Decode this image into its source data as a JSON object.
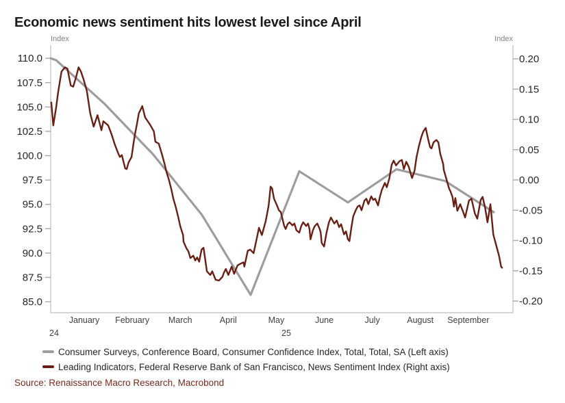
{
  "title": "Economic news sentiment hits lowest level since April",
  "left_axis_unit_label": "Index",
  "right_axis_unit_label": "Index",
  "source": "Source: Renaissance Macro Research, Macrobond",
  "legend": [
    {
      "label": "Consumer Surveys, Conference Board, Consumer Confidence Index, Total, Total, SA (Left axis)",
      "color": "#9d9d9d"
    },
    {
      "label": "Leading Indicators, Federal Reserve Bank of San Francisco, News Sentiment Index (Right axis)",
      "color": "#6b1d12"
    }
  ],
  "chart_data": {
    "type": "line",
    "title": "Economic news sentiment hits lowest level since April",
    "grid": false,
    "x_axis": {
      "month_labels": [
        "January",
        "February",
        "March",
        "April",
        "May",
        "June",
        "July",
        "August",
        "September"
      ],
      "year_labels": [
        "24",
        "25"
      ]
    },
    "left_axis": {
      "label": "Index",
      "tick_labels": [
        "110.0",
        "107.5",
        "105.0",
        "102.5",
        "100.0",
        "97.5",
        "95.0",
        "92.5",
        "90.0",
        "87.5",
        "85.0"
      ],
      "tick_values": [
        110.0,
        107.5,
        105.0,
        102.5,
        100.0,
        97.5,
        95.0,
        92.5,
        90.0,
        87.5,
        85.0
      ],
      "range": [
        83.8,
        111.3
      ]
    },
    "right_axis": {
      "label": "Index",
      "tick_labels": [
        "0.20",
        "0.15",
        "0.10",
        "0.05",
        "0.00",
        "-0.05",
        "-0.10",
        "-0.15",
        "-0.20"
      ],
      "tick_values": [
        0.2,
        0.15,
        0.1,
        0.05,
        0.0,
        -0.05,
        -0.1,
        -0.15,
        -0.2
      ],
      "range": [
        -0.219,
        0.223
      ]
    },
    "series": [
      {
        "name": "Consumer Surveys, Conference Board, Consumer Confidence Index, Total, Total, SA",
        "axis": "left",
        "color": "#9d9d9d",
        "categories": [
          "Dec 2024",
          "Jan 2025",
          "Feb 2025",
          "Mar 2025",
          "Apr 2025",
          "May 2025",
          "Jun 2025",
          "Jul 2025",
          "Aug 2025",
          "Sep 2025"
        ],
        "values": [
          109.8,
          105.3,
          100.1,
          93.9,
          85.7,
          98.4,
          95.2,
          98.6,
          97.4,
          94.2
        ],
        "points": [
          [
            -0.11,
            110.0
          ],
          [
            0,
            109.8
          ],
          [
            1,
            105.3
          ],
          [
            2,
            100.1
          ],
          [
            3,
            93.9
          ],
          [
            4,
            85.7
          ],
          [
            5,
            98.4
          ],
          [
            6,
            95.2
          ],
          [
            7,
            98.6
          ],
          [
            8,
            97.4
          ],
          [
            9,
            94.2
          ]
        ]
      },
      {
        "name": "Leading Indicators, Federal Reserve Bank of San Francisco, News Sentiment Index",
        "axis": "right",
        "color": "#6b1d12",
        "points": [
          [
            -0.1,
            0.128
          ],
          [
            -0.06,
            0.09
          ],
          [
            0.0,
            0.12
          ],
          [
            0.04,
            0.145
          ],
          [
            0.11,
            0.179
          ],
          [
            0.18,
            0.186
          ],
          [
            0.23,
            0.184
          ],
          [
            0.3,
            0.156
          ],
          [
            0.35,
            0.154
          ],
          [
            0.41,
            0.17
          ],
          [
            0.46,
            0.186
          ],
          [
            0.51,
            0.179
          ],
          [
            0.56,
            0.167
          ],
          [
            0.63,
            0.147
          ],
          [
            0.7,
            0.11
          ],
          [
            0.77,
            0.088
          ],
          [
            0.85,
            0.107
          ],
          [
            0.93,
            0.082
          ],
          [
            0.97,
            0.097
          ],
          [
            1.07,
            0.09
          ],
          [
            1.14,
            0.075
          ],
          [
            1.2,
            0.06
          ],
          [
            1.27,
            0.045
          ],
          [
            1.31,
            0.038
          ],
          [
            1.35,
            0.041
          ],
          [
            1.42,
            0.019
          ],
          [
            1.45,
            0.018
          ],
          [
            1.49,
            0.029
          ],
          [
            1.55,
            0.038
          ],
          [
            1.59,
            0.06
          ],
          [
            1.62,
            0.075
          ],
          [
            1.66,
            0.092
          ],
          [
            1.7,
            0.11
          ],
          [
            1.76,
            0.12
          ],
          [
            1.77,
            0.122
          ],
          [
            1.83,
            0.103
          ],
          [
            1.9,
            0.095
          ],
          [
            1.94,
            0.09
          ],
          [
            2.01,
            0.08
          ],
          [
            2.04,
            0.063
          ],
          [
            2.11,
            0.06
          ],
          [
            2.18,
            0.041
          ],
          [
            2.23,
            0.026
          ],
          [
            2.27,
            0.013
          ],
          [
            2.32,
            0.0
          ],
          [
            2.37,
            -0.016
          ],
          [
            2.41,
            -0.031
          ],
          [
            2.46,
            -0.045
          ],
          [
            2.51,
            -0.061
          ],
          [
            2.55,
            -0.076
          ],
          [
            2.61,
            -0.091
          ],
          [
            2.62,
            -0.102
          ],
          [
            2.68,
            -0.113
          ],
          [
            2.72,
            -0.118
          ],
          [
            2.76,
            -0.129
          ],
          [
            2.82,
            -0.125
          ],
          [
            2.86,
            -0.133
          ],
          [
            2.9,
            -0.128
          ],
          [
            2.94,
            -0.135
          ],
          [
            2.99,
            -0.115
          ],
          [
            3.03,
            -0.112
          ],
          [
            3.1,
            -0.151
          ],
          [
            3.17,
            -0.157
          ],
          [
            3.21,
            -0.151
          ],
          [
            3.28,
            -0.165
          ],
          [
            3.35,
            -0.166
          ],
          [
            3.42,
            -0.16
          ],
          [
            3.45,
            -0.153
          ],
          [
            3.49,
            -0.147
          ],
          [
            3.54,
            -0.157
          ],
          [
            3.61,
            -0.143
          ],
          [
            3.66,
            -0.155
          ],
          [
            3.73,
            -0.141
          ],
          [
            3.8,
            -0.138
          ],
          [
            3.85,
            -0.136
          ],
          [
            3.87,
            -0.143
          ],
          [
            3.94,
            -0.117
          ],
          [
            3.99,
            -0.115
          ],
          [
            4.06,
            -0.121
          ],
          [
            4.15,
            -0.087
          ],
          [
            4.17,
            -0.079
          ],
          [
            4.23,
            -0.091
          ],
          [
            4.31,
            -0.068
          ],
          [
            4.37,
            -0.042
          ],
          [
            4.41,
            -0.011
          ],
          [
            4.44,
            -0.014
          ],
          [
            4.48,
            -0.031
          ],
          [
            4.54,
            -0.042
          ],
          [
            4.58,
            -0.05
          ],
          [
            4.62,
            -0.053
          ],
          [
            4.69,
            -0.076
          ],
          [
            4.72,
            -0.081
          ],
          [
            4.76,
            -0.073
          ],
          [
            4.8,
            -0.07
          ],
          [
            4.86,
            -0.075
          ],
          [
            4.9,
            -0.072
          ],
          [
            4.94,
            -0.083
          ],
          [
            5.0,
            -0.087
          ],
          [
            5.04,
            -0.076
          ],
          [
            5.08,
            -0.07
          ],
          [
            5.14,
            -0.076
          ],
          [
            5.18,
            -0.072
          ],
          [
            5.21,
            -0.081
          ],
          [
            5.23,
            -0.098
          ],
          [
            5.28,
            -0.083
          ],
          [
            5.32,
            -0.076
          ],
          [
            5.37,
            -0.072
          ],
          [
            5.42,
            -0.081
          ],
          [
            5.44,
            -0.087
          ],
          [
            5.46,
            -0.104
          ],
          [
            5.51,
            -0.11
          ],
          [
            5.56,
            -0.087
          ],
          [
            5.61,
            -0.07
          ],
          [
            5.65,
            -0.062
          ],
          [
            5.72,
            -0.072
          ],
          [
            5.77,
            -0.067
          ],
          [
            5.82,
            -0.078
          ],
          [
            5.86,
            -0.073
          ],
          [
            5.92,
            -0.09
          ],
          [
            5.96,
            -0.085
          ],
          [
            6.0,
            -0.098
          ],
          [
            6.03,
            -0.101
          ],
          [
            6.07,
            -0.079
          ],
          [
            6.11,
            -0.06
          ],
          [
            6.16,
            -0.05
          ],
          [
            6.2,
            -0.044
          ],
          [
            6.24,
            -0.042
          ],
          [
            6.28,
            -0.05
          ],
          [
            6.34,
            -0.034
          ],
          [
            6.38,
            -0.031
          ],
          [
            6.42,
            -0.04
          ],
          [
            6.48,
            -0.027
          ],
          [
            6.52,
            -0.033
          ],
          [
            6.56,
            -0.031
          ],
          [
            6.62,
            -0.042
          ],
          [
            6.66,
            -0.027
          ],
          [
            6.7,
            -0.016
          ],
          [
            6.76,
            -0.005
          ],
          [
            6.8,
            -0.012
          ],
          [
            6.85,
            0.002
          ],
          [
            6.9,
            0.025
          ],
          [
            6.94,
            0.032
          ],
          [
            6.99,
            0.024
          ],
          [
            7.06,
            0.031
          ],
          [
            7.11,
            0.033
          ],
          [
            7.15,
            0.018
          ],
          [
            7.2,
            0.03
          ],
          [
            7.25,
            0.022
          ],
          [
            7.3,
            0.008
          ],
          [
            7.32,
            0.003
          ],
          [
            7.37,
            0.015
          ],
          [
            7.41,
            0.037
          ],
          [
            7.46,
            0.056
          ],
          [
            7.51,
            0.071
          ],
          [
            7.55,
            0.08
          ],
          [
            7.6,
            0.086
          ],
          [
            7.65,
            0.067
          ],
          [
            7.69,
            0.054
          ],
          [
            7.72,
            0.052
          ],
          [
            7.76,
            0.062
          ],
          [
            7.82,
            0.066
          ],
          [
            7.86,
            0.062
          ],
          [
            7.9,
            0.043
          ],
          [
            7.96,
            0.026
          ],
          [
            7.97,
            0.017
          ],
          [
            8.03,
            0.0
          ],
          [
            8.08,
            -0.014
          ],
          [
            8.11,
            -0.019
          ],
          [
            8.15,
            -0.028
          ],
          [
            8.18,
            -0.044
          ],
          [
            8.21,
            -0.03
          ],
          [
            8.25,
            -0.051
          ],
          [
            8.31,
            -0.04
          ],
          [
            8.38,
            -0.055
          ],
          [
            8.41,
            -0.062
          ],
          [
            8.49,
            -0.034
          ],
          [
            8.54,
            -0.031
          ],
          [
            8.61,
            -0.055
          ],
          [
            8.66,
            -0.064
          ],
          [
            8.73,
            -0.033
          ],
          [
            8.77,
            -0.028
          ],
          [
            8.82,
            -0.045
          ],
          [
            8.87,
            -0.07
          ],
          [
            8.93,
            -0.04
          ],
          [
            8.99,
            -0.09
          ],
          [
            9.01,
            -0.096
          ],
          [
            9.08,
            -0.117
          ],
          [
            9.11,
            -0.126
          ],
          [
            9.15,
            -0.143
          ],
          [
            9.17,
            -0.145
          ]
        ]
      }
    ]
  }
}
